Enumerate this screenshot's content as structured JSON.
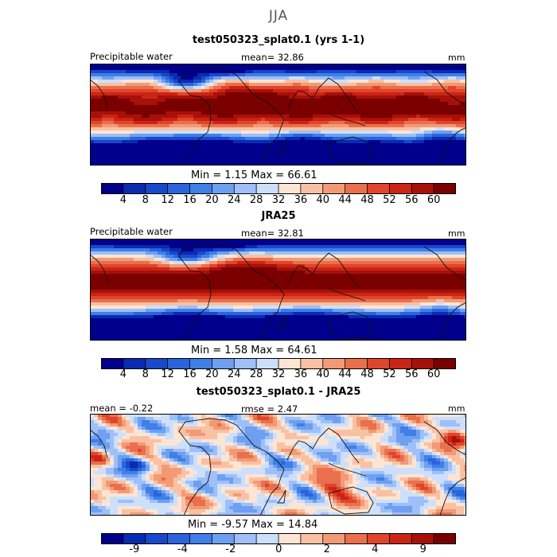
{
  "season": "JJA",
  "panels": [
    {
      "title": "test050323_splat0.1 (yrs 1-1)",
      "left_label": "Precipitable water",
      "center_label": "mean=   32.86",
      "unit": "mm",
      "min_max": "Min =    1.15  Max =   66.61",
      "kind": "field"
    },
    {
      "title": "JRA25",
      "left_label": "Precipitable water",
      "center_label": "mean=   32.81",
      "unit": "mm",
      "min_max": "Min =    1.58  Max =   64.61",
      "kind": "field"
    },
    {
      "title": "test050323_splat0.1 - JRA25",
      "left_label": "mean =  -0.22",
      "center_label": "rmse =    2.47",
      "unit": "mm",
      "min_max": "Min =   -9.57  Max =   14.84",
      "kind": "diff"
    }
  ],
  "colorbars": {
    "field_ticks": [
      "4",
      "8",
      "12",
      "16",
      "20",
      "24",
      "28",
      "32",
      "36",
      "40",
      "44",
      "48",
      "52",
      "56",
      "60"
    ],
    "diff_ticks": [
      "-9",
      "-4",
      "-2",
      "0",
      "2",
      "4",
      "9"
    ],
    "colors": [
      "#00008c",
      "#0a2ab0",
      "#1848cc",
      "#2a64dc",
      "#3f7fe6",
      "#6e9ff0",
      "#9ebff7",
      "#cce0fc",
      "#fde5d4",
      "#f9c1a3",
      "#f29a76",
      "#ea6f4c",
      "#e0452c",
      "#cc2414",
      "#a8100a",
      "#7a0000"
    ]
  },
  "chart_data": [
    {
      "type": "heatmap",
      "title": "test050323_splat0.1 (yrs 1-1)",
      "variable": "Precipitable water",
      "units": "mm",
      "season": "JJA",
      "mean": 32.86,
      "min": 1.15,
      "max": 66.61,
      "levels": [
        4,
        8,
        12,
        16,
        20,
        24,
        28,
        32,
        36,
        40,
        44,
        48,
        52,
        56,
        60
      ]
    },
    {
      "type": "heatmap",
      "title": "JRA25",
      "variable": "Precipitable water",
      "units": "mm",
      "season": "JJA",
      "mean": 32.81,
      "min": 1.58,
      "max": 64.61,
      "levels": [
        4,
        8,
        12,
        16,
        20,
        24,
        28,
        32,
        36,
        40,
        44,
        48,
        52,
        56,
        60
      ]
    },
    {
      "type": "heatmap",
      "title": "test050323_splat0.1 - JRA25",
      "units": "mm",
      "season": "JJA",
      "mean": -0.22,
      "rmse": 2.47,
      "min": -9.57,
      "max": 14.84,
      "levels": [
        -9,
        -4,
        -2,
        0,
        2,
        4,
        9
      ]
    }
  ]
}
